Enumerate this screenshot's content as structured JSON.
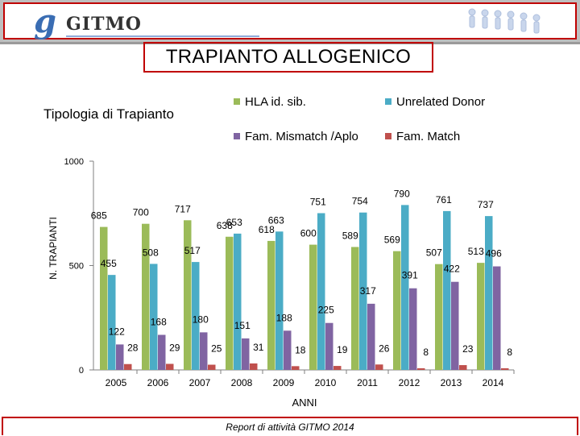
{
  "header": {
    "logo_mark": "g",
    "logo_text": "GITMO"
  },
  "slide_title": "TRAPIANTO ALLOGENICO",
  "footer": "Report di attività GITMO 2014",
  "colors": {
    "hla": "#9bbb59",
    "unrelated": "#4bacc6",
    "mismatch": "#8064a2",
    "match": "#c0504d",
    "border_red": "#c00000"
  },
  "chart_data": {
    "type": "bar",
    "title": "Tipologia di Trapianto",
    "xlabel": "ANNI",
    "ylabel": "N. TRAPIANTI",
    "ylim": [
      0,
      1000
    ],
    "yticks": [
      0,
      500,
      1000
    ],
    "categories": [
      "2005",
      "2006",
      "2007",
      "2008",
      "2009",
      "2010",
      "2011",
      "2012",
      "2013",
      "2014"
    ],
    "series": [
      {
        "name": "HLA id. sib.",
        "color": "#9bbb59",
        "values": [
          685,
          700,
          717,
          638,
          618,
          600,
          589,
          569,
          507,
          513
        ]
      },
      {
        "name": "Unrelated Donor",
        "color": "#4bacc6",
        "values": [
          455,
          508,
          517,
          653,
          663,
          751,
          754,
          790,
          761,
          737
        ]
      },
      {
        "name": "Fam. Mismatch /Aplo",
        "color": "#8064a2",
        "values": [
          122,
          168,
          180,
          151,
          188,
          225,
          317,
          391,
          422,
          496
        ]
      },
      {
        "name": "Fam. Match",
        "color": "#c0504d",
        "values": [
          28,
          29,
          25,
          31,
          18,
          19,
          26,
          8,
          23,
          8
        ]
      }
    ]
  }
}
